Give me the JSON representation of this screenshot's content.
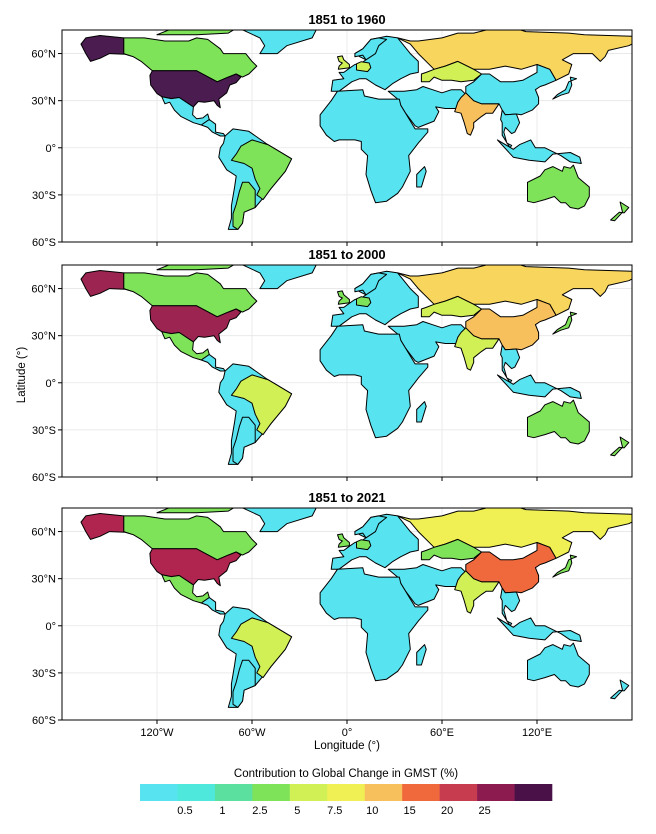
{
  "panels": [
    {
      "title": "1851 to 1960",
      "regions": {
        "alaska": "#4a1c50",
        "canada": "#7fe35a",
        "usa": "#4a1c50",
        "greenland": "#57e3f0",
        "mexico": "#57e3f0",
        "central_america": "#57e3f0",
        "south_america": "#57e3f0",
        "brazil": "#7fe35a",
        "argentina": "#7fe35a",
        "europe": "#57e3f0",
        "uk": "#d0f055",
        "germany": "#d0f055",
        "russia": "#f8d55c",
        "kazakhstan": "#d0f055",
        "china": "#57e3f0",
        "india": "#f8c05c",
        "middle_east": "#57e3f0",
        "africa": "#57e3f0",
        "australia": "#7fe35a",
        "se_asia": "#57e3f0",
        "japan": "#57e3f0"
      }
    },
    {
      "title": "1851 to 2000",
      "regions": {
        "alaska": "#9c2450",
        "canada": "#7fe35a",
        "usa": "#9c2450",
        "greenland": "#57e3f0",
        "mexico": "#7fe35a",
        "central_america": "#57e3f0",
        "south_america": "#57e3f0",
        "brazil": "#d0f055",
        "argentina": "#57e3f0",
        "europe": "#57e3f0",
        "uk": "#7fe35a",
        "germany": "#7fe35a",
        "russia": "#f8d55c",
        "kazakhstan": "#d0f055",
        "china": "#f8c05c",
        "india": "#d0f055",
        "middle_east": "#57e3f0",
        "africa": "#57e3f0",
        "australia": "#7fe35a",
        "se_asia": "#57e3f0",
        "japan": "#7fe35a"
      }
    },
    {
      "title": "1851 to 2021",
      "regions": {
        "alaska": "#b0254f",
        "canada": "#7fe35a",
        "usa": "#b0254f",
        "greenland": "#57e3f0",
        "mexico": "#7fe35a",
        "central_america": "#57e3f0",
        "south_america": "#57e3f0",
        "brazil": "#d0f055",
        "argentina": "#57e3f0",
        "europe": "#57e3f0",
        "uk": "#7fe35a",
        "germany": "#7fe35a",
        "russia": "#f0f055",
        "kazakhstan": "#7fe35a",
        "china": "#f0693c",
        "india": "#d0f055",
        "middle_east": "#57e3f0",
        "africa": "#57e3f0",
        "australia": "#57e3f0",
        "se_asia": "#57e3f0",
        "japan": "#7fe35a"
      }
    }
  ],
  "lat_ticks": [
    {
      "lat": 60,
      "label": "60°N"
    },
    {
      "lat": 30,
      "label": "30°N"
    },
    {
      "lat": 0,
      "label": "0°"
    },
    {
      "lat": -30,
      "label": "30°S"
    },
    {
      "lat": -60,
      "label": "60°S"
    }
  ],
  "lon_ticks": [
    {
      "lon": -120,
      "label": "120°W"
    },
    {
      "lon": -60,
      "label": "60°W"
    },
    {
      "lon": 0,
      "label": "0°"
    },
    {
      "lon": 60,
      "label": "60°E"
    },
    {
      "lon": 120,
      "label": "120°E"
    }
  ],
  "axes": {
    "ylabel": "Latitude (°)",
    "xlabel": "Longitude (°)",
    "lon_range": [
      -180,
      180
    ],
    "lat_range": [
      -60,
      75
    ]
  },
  "legend": {
    "title": "Contribution to Global Change in GMST (%)",
    "colors": [
      "#57e3f0",
      "#4fe8dc",
      "#5ce0a0",
      "#7fe35a",
      "#d0f055",
      "#f0f055",
      "#f8c05c",
      "#f0693c",
      "#c83c50",
      "#8c1c50",
      "#4a1048"
    ],
    "labels": [
      "0.5",
      "1",
      "2.5",
      "5",
      "7.5",
      "10",
      "15",
      "20",
      "25"
    ]
  }
}
